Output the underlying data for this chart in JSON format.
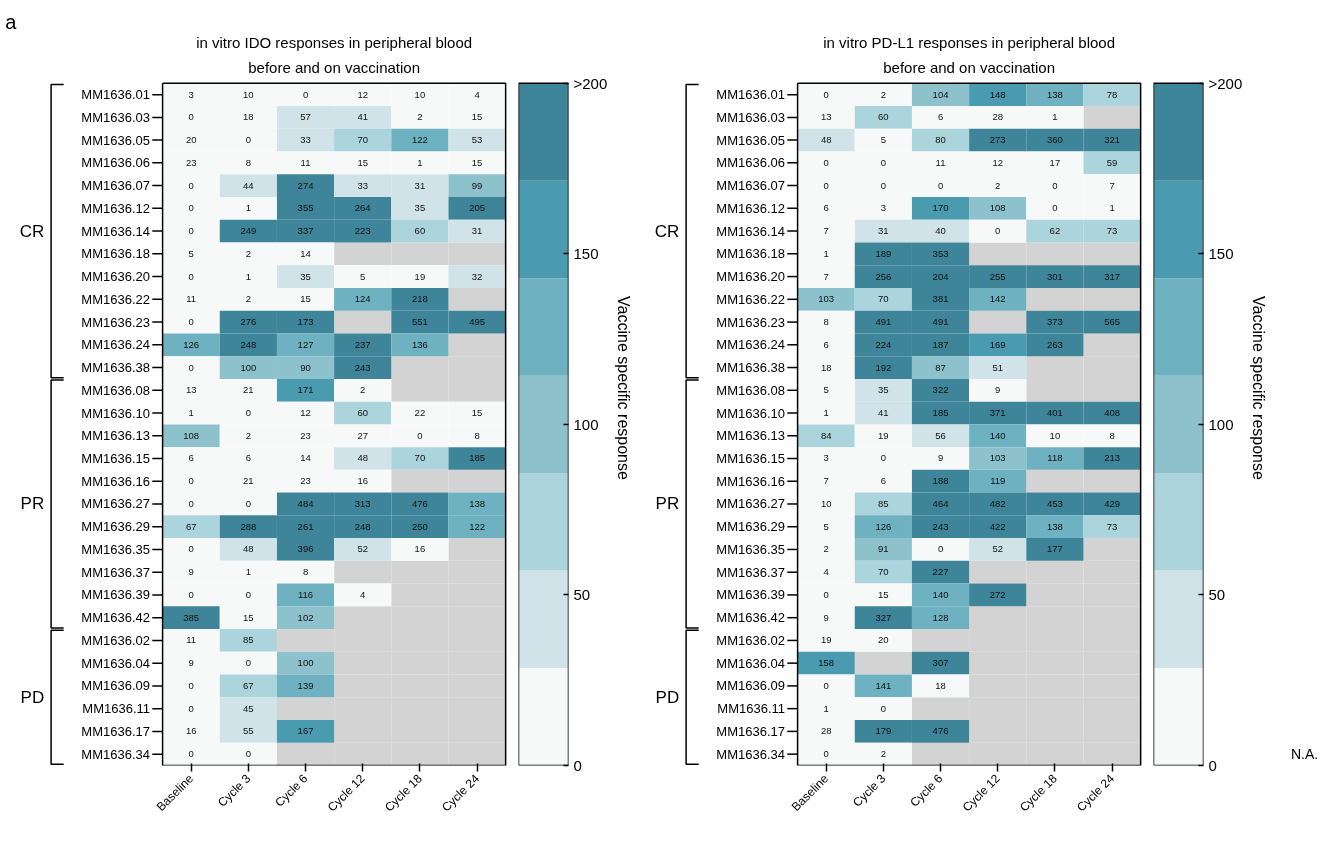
{
  "chart_data": [
    {
      "type": "heatmap",
      "title": "in vitro IDO responses in peripheral blood before and on vaccination",
      "clabel": "Vaccine specific response",
      "data_labels": true,
      "categories": [
        "Baseline",
        "Cycle 3",
        "Cycle 6",
        "Cycle 12",
        "Cycle 18",
        "Cycle 24"
      ],
      "y_categories": [
        "MM1636.01",
        "MM1636.03",
        "MM1636.05",
        "MM1636.06",
        "MM1636.07",
        "MM1636.12",
        "MM1636.14",
        "MM1636.18",
        "MM1636.20",
        "MM1636.22",
        "MM1636.23",
        "MM1636.24",
        "MM1636.38",
        "MM1636.08",
        "MM1636.10",
        "MM1636.13",
        "MM1636.15",
        "MM1636.16",
        "MM1636.27",
        "MM1636.29",
        "MM1636.35",
        "MM1636.37",
        "MM1636.39",
        "MM1636.42",
        "MM1636.02",
        "MM1636.04",
        "MM1636.09",
        "MM1636.11",
        "MM1636.17",
        "MM1636.34"
      ],
      "cells": [
        [
          3,
          10,
          0,
          12,
          10,
          4
        ],
        [
          0,
          18,
          57,
          41,
          2,
          15
        ],
        [
          20,
          0,
          33,
          70,
          122,
          53
        ],
        [
          23,
          8,
          11,
          15,
          1,
          15
        ],
        [
          0,
          44,
          274,
          33,
          31,
          99
        ],
        [
          0,
          1,
          355,
          264,
          35,
          205
        ],
        [
          0,
          249,
          337,
          223,
          60,
          31
        ],
        [
          5,
          2,
          14,
          null,
          null,
          null
        ],
        [
          0,
          1,
          35,
          5,
          19,
          32
        ],
        [
          11,
          2,
          15,
          124,
          218,
          null
        ],
        [
          0,
          276,
          173,
          null,
          551,
          495
        ],
        [
          126,
          248,
          127,
          237,
          136,
          null
        ],
        [
          0,
          100,
          90,
          243,
          null,
          null
        ],
        [
          13,
          21,
          171,
          2,
          null,
          null
        ],
        [
          1,
          0,
          12,
          60,
          22,
          15
        ],
        [
          108,
          2,
          23,
          27,
          0,
          8
        ],
        [
          6,
          6,
          14,
          48,
          70,
          185
        ],
        [
          0,
          21,
          23,
          16,
          null,
          null
        ],
        [
          0,
          0,
          484,
          313,
          476,
          138
        ],
        [
          67,
          288,
          261,
          248,
          250,
          122
        ],
        [
          0,
          48,
          396,
          52,
          16,
          null
        ],
        [
          9,
          1,
          8,
          null,
          null,
          null
        ],
        [
          0,
          0,
          116,
          4,
          null,
          null
        ],
        [
          385,
          15,
          102,
          null,
          null,
          null
        ],
        [
          11,
          85,
          null,
          null,
          null,
          null
        ],
        [
          9,
          0,
          100,
          null,
          null,
          null
        ],
        [
          0,
          67,
          139,
          null,
          null,
          null
        ],
        [
          0,
          45,
          null,
          null,
          null,
          null
        ],
        [
          16,
          55,
          167,
          null,
          null,
          null
        ],
        [
          0,
          0,
          null,
          null,
          null,
          null
        ]
      ],
      "colors": [
        "#f7f9f9",
        "#cfe3e8",
        "#abd4dc",
        "#8dc2cd",
        "#6eb1c0",
        "#4b9bb0",
        "#3f8599"
      ],
      "clim": [
        0,
        200
      ],
      "cticks": [
        0,
        50,
        100,
        150,
        {
          "value": 200,
          "label": ">200"
        }
      ],
      "annotations": [
        "a",
        "CR",
        "PR",
        "PD"
      ]
    },
    {
      "type": "heatmap",
      "title": "in vitro PD-L1 responses in peripheral blood before and on vaccination",
      "clabel": "Vaccine specific response",
      "data_labels": true,
      "categories": [
        "Baseline",
        "Cycle 3",
        "Cycle 6",
        "Cycle 12",
        "Cycle 18",
        "Cycle 24"
      ],
      "y_categories": [
        "MM1636.01",
        "MM1636.03",
        "MM1636.05",
        "MM1636.06",
        "MM1636.07",
        "MM1636.12",
        "MM1636.14",
        "MM1636.18",
        "MM1636.20",
        "MM1636.22",
        "MM1636.23",
        "MM1636.24",
        "MM1636.38",
        "MM1636.08",
        "MM1636.10",
        "MM1636.13",
        "MM1636.15",
        "MM1636.16",
        "MM1636.27",
        "MM1636.29",
        "MM1636.35",
        "MM1636.37",
        "MM1636.39",
        "MM1636.42",
        "MM1636.02",
        "MM1636.04",
        "MM1636.09",
        "MM1636.11",
        "MM1636.17",
        "MM1636.34"
      ],
      "cells": [
        [
          0,
          2,
          104,
          148,
          138,
          78
        ],
        [
          13,
          60,
          6,
          28,
          1,
          null
        ],
        [
          48,
          5,
          80,
          273,
          360,
          321
        ],
        [
          0,
          0,
          11,
          12,
          17,
          59
        ],
        [
          0,
          0,
          0,
          2,
          0,
          7
        ],
        [
          6,
          3,
          170,
          108,
          0,
          1
        ],
        [
          7,
          31,
          40,
          0,
          62,
          73
        ],
        [
          1,
          189,
          353,
          null,
          null,
          null
        ],
        [
          7,
          256,
          204,
          255,
          301,
          317
        ],
        [
          103,
          70,
          381,
          142,
          null,
          null
        ],
        [
          8,
          491,
          491,
          null,
          373,
          565
        ],
        [
          6,
          224,
          187,
          169,
          263,
          null
        ],
        [
          18,
          192,
          87,
          51,
          null,
          null
        ],
        [
          5,
          35,
          322,
          9,
          null,
          null
        ],
        [
          1,
          41,
          185,
          371,
          401,
          408
        ],
        [
          84,
          19,
          56,
          140,
          10,
          8
        ],
        [
          3,
          0,
          9,
          103,
          118,
          213
        ],
        [
          7,
          6,
          188,
          119,
          null,
          null
        ],
        [
          10,
          85,
          464,
          482,
          453,
          429
        ],
        [
          5,
          126,
          243,
          422,
          138,
          73
        ],
        [
          2,
          91,
          0,
          52,
          177,
          null
        ],
        [
          4,
          70,
          227,
          null,
          null,
          null
        ],
        [
          0,
          15,
          140,
          272,
          null,
          null
        ],
        [
          9,
          327,
          128,
          null,
          null,
          null
        ],
        [
          19,
          20,
          null,
          null,
          null,
          null
        ],
        [
          158,
          null,
          307,
          null,
          null,
          null
        ],
        [
          0,
          141,
          18,
          null,
          null,
          null
        ],
        [
          1,
          0,
          null,
          null,
          null,
          null
        ],
        [
          28,
          179,
          476,
          null,
          null,
          null
        ],
        [
          0,
          2,
          null,
          null,
          null,
          null
        ]
      ],
      "colors": [
        "#f7f9f9",
        "#cfe3e8",
        "#abd4dc",
        "#8dc2cd",
        "#6eb1c0",
        "#4b9bb0",
        "#3f8599"
      ],
      "clim": [
        0,
        200
      ],
      "cticks": [
        0,
        50,
        100,
        150,
        {
          "value": 200,
          "label": ">200"
        }
      ],
      "annotations": [
        "N.A.",
        "CR",
        "PR",
        "PD"
      ]
    }
  ]
}
